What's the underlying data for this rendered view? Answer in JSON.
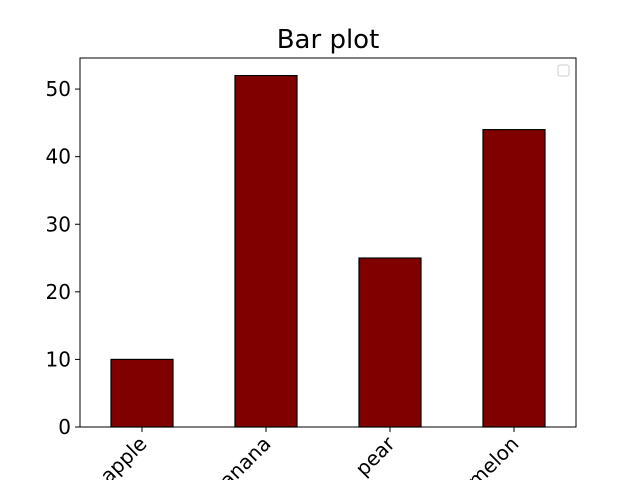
{
  "chart_data": {
    "type": "bar",
    "title": "Bar plot",
    "xlabel": "",
    "ylabel": "",
    "categories": [
      "apple",
      "banana",
      "pear",
      "melon"
    ],
    "values": [
      10,
      52,
      25,
      44
    ],
    "ylim": [
      0,
      54.6
    ],
    "yticks": [
      0,
      10,
      20,
      30,
      40,
      50
    ],
    "bar_color": "#800000",
    "edge_color": "#000000",
    "grid": false,
    "legend": "upper-right-empty",
    "xtick_rotation": -45
  }
}
